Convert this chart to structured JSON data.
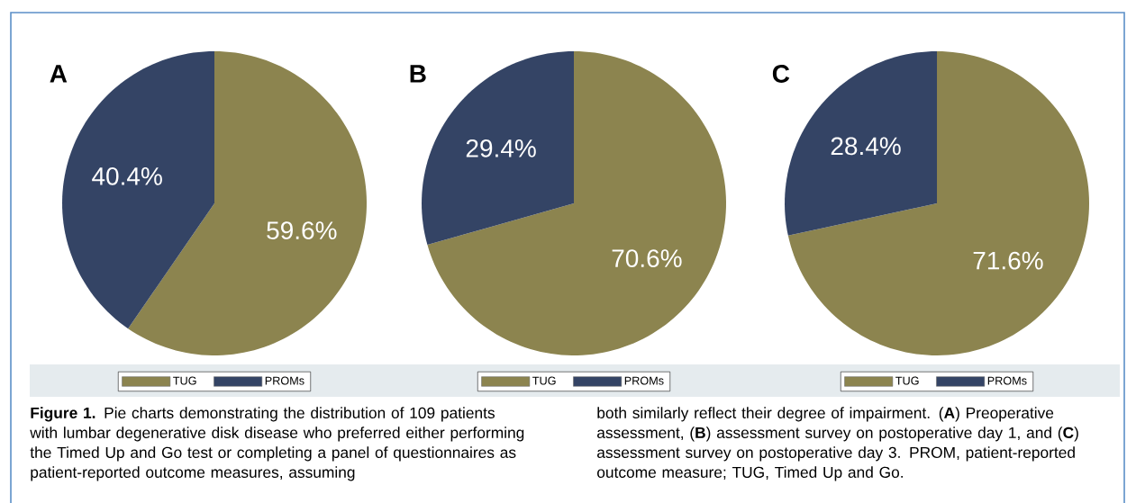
{
  "chart_data": [
    {
      "type": "pie",
      "title": "A",
      "categories": [
        "TUG",
        "PROMs"
      ],
      "values": [
        59.6,
        40.4
      ],
      "colors": [
        "#8c844f",
        "#344465"
      ],
      "value_labels": [
        "59.6%",
        "40.4%"
      ],
      "legend": "bottom",
      "annotations": [
        "**Figure 1.** Pie charts demonstrating the distribution of 109 patients with lumbar degenerative disk disease who preferred either performing the Timed Up and Go test or completing a panel of questionnaires as patient-reported outcome measures, assuming",
        "both similarly reflect their degree of impairment. (**A**) Preoperative assessment, (**B**) assessment survey on postoperative day 1, and (**C**) assessment survey on postoperative day 3. PROM, patient-reported outcome measure; TUG, Timed Up and Go."
      ]
    },
    {
      "type": "pie",
      "title": "B",
      "categories": [
        "TUG",
        "PROMs"
      ],
      "values": [
        70.6,
        29.4
      ],
      "colors": [
        "#8c844f",
        "#344465"
      ],
      "value_labels": [
        "70.6%",
        "29.4%"
      ],
      "legend": "bottom"
    },
    {
      "type": "pie",
      "title": "C",
      "categories": [
        "TUG",
        "PROMs"
      ],
      "values": [
        71.6,
        28.4
      ],
      "colors": [
        "#8c844f",
        "#344465"
      ],
      "value_labels": [
        "71.6%",
        "28.4%"
      ],
      "legend": "bottom"
    }
  ]
}
